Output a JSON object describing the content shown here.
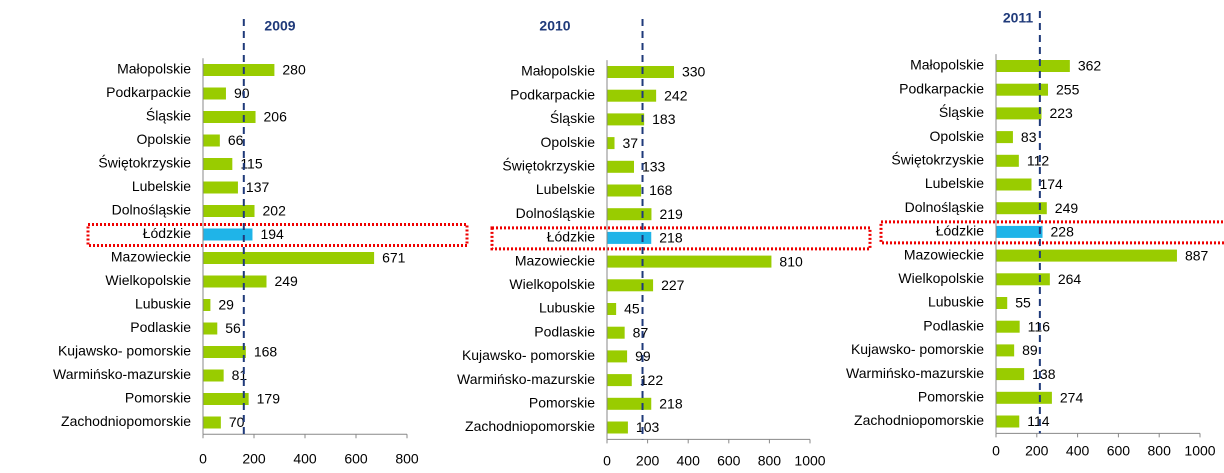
{
  "chart_data": [
    {
      "type": "bar",
      "title": "2009",
      "categories": [
        "Małopolskie",
        "Podkarpackie",
        "Śląskie",
        "Opolskie",
        "Świętokrzyskie",
        "Lubelskie",
        "Dolnośląskie",
        "Łódzkie",
        "Mazowieckie",
        "Wielkopolskie",
        "Lubuskie",
        "Podlaskie",
        "Kujawsko- pomorskie",
        "Warmińsko-mazurskie",
        "Pomorskie",
        "Zachodniopomorskie"
      ],
      "values": [
        280,
        90,
        206,
        66,
        115,
        137,
        202,
        194,
        671,
        249,
        29,
        56,
        168,
        81,
        179,
        70
      ],
      "color": "#99cc00",
      "highlight": {
        "index": 7,
        "color": "#1fb4e8"
      },
      "reference_line": {
        "value": 160,
        "color": "#1f3a7a"
      },
      "xlim": [
        0,
        800
      ],
      "xticks": [
        0,
        200,
        400,
        600,
        800
      ]
    },
    {
      "type": "bar",
      "title": "2010",
      "categories": [
        "Małopolskie",
        "Podkarpackie",
        "Śląskie",
        "Opolskie",
        "Świętokrzyskie",
        "Lubelskie",
        "Dolnośląskie",
        "Łódzkie",
        "Mazowieckie",
        "Wielkopolskie",
        "Lubuskie",
        "Podlaskie",
        "Kujawsko- pomorskie",
        "Warmińsko-mazurskie",
        "Pomorskie",
        "Zachodniopomorskie"
      ],
      "values": [
        330,
        242,
        183,
        37,
        133,
        168,
        219,
        218,
        810,
        227,
        45,
        87,
        99,
        122,
        218,
        103
      ],
      "color": "#99cc00",
      "highlight": {
        "index": 7,
        "color": "#1fb4e8"
      },
      "reference_line": {
        "value": 175,
        "color": "#1f3a7a"
      },
      "xlim": [
        0,
        1000
      ],
      "xticks": [
        0,
        200,
        400,
        600,
        800,
        1000
      ]
    },
    {
      "type": "bar",
      "title": "2011",
      "categories": [
        "Małopolskie",
        "Podkarpackie",
        "Śląskie",
        "Opolskie",
        "Świętokrzyskie",
        "Lubelskie",
        "Dolnośląskie",
        "Łódzkie",
        "Mazowieckie",
        "Wielkopolskie",
        "Lubuskie",
        "Podlaskie",
        "Kujawsko- pomorskie",
        "Warmińsko-mazurskie",
        "Pomorskie",
        "Zachodniopomorskie"
      ],
      "values": [
        362,
        255,
        223,
        83,
        112,
        174,
        249,
        228,
        887,
        264,
        55,
        116,
        89,
        138,
        274,
        114
      ],
      "color": "#99cc00",
      "highlight": {
        "index": 7,
        "color": "#1fb4e8"
      },
      "reference_line": {
        "value": 215,
        "color": "#1f3a7a"
      },
      "xlim": [
        0,
        1000
      ],
      "xticks": [
        0,
        200,
        400,
        600,
        800,
        1000
      ]
    }
  ]
}
